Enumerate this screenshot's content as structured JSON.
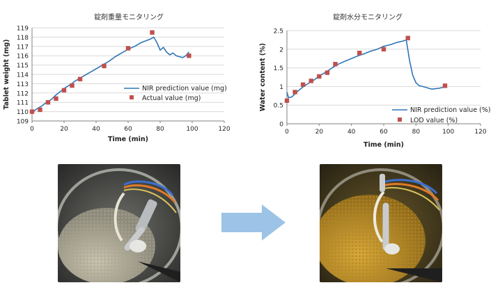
{
  "chart_data": [
    {
      "type": "line",
      "title": "錠剤重量モニタリング",
      "xlabel": "Time (min)",
      "ylabel": "Tablet weight (mg)",
      "xlim": [
        0,
        120
      ],
      "ylim": [
        109,
        119
      ],
      "xticks": [
        "0",
        "20",
        "40",
        "60",
        "80",
        "100",
        "120"
      ],
      "yticks": [
        "109",
        "110",
        "111",
        "112",
        "113",
        "114",
        "115",
        "116",
        "117",
        "118",
        "119"
      ],
      "grid": true,
      "legend": "inside-right",
      "series": [
        {
          "name": "NIR prediction value (mg)",
          "style": "line",
          "color": "#2e75b6",
          "x": [
            0,
            3,
            6,
            9,
            12,
            15,
            18,
            21,
            24,
            27,
            30,
            33,
            36,
            40,
            44,
            48,
            52,
            56,
            60,
            64,
            68,
            71,
            74,
            76,
            78,
            80,
            82,
            84,
            86,
            88,
            90,
            92,
            94,
            96,
            98
          ],
          "y": [
            109.9,
            110.3,
            110.6,
            111.0,
            111.3,
            111.8,
            112.2,
            112.6,
            112.9,
            113.3,
            113.6,
            113.9,
            114.2,
            114.6,
            115.0,
            115.4,
            115.9,
            116.3,
            116.7,
            117.0,
            117.4,
            117.6,
            117.8,
            118.0,
            117.4,
            116.6,
            116.9,
            116.4,
            116.1,
            116.3,
            116.0,
            115.9,
            115.8,
            116.0,
            116.4
          ]
        },
        {
          "name": "Actual value (mg)",
          "style": "marker",
          "color": "#c0504d",
          "x": [
            0,
            5,
            10,
            15,
            20,
            25,
            30,
            45,
            60,
            75,
            98
          ],
          "y": [
            110.0,
            110.2,
            111.0,
            111.4,
            112.3,
            112.8,
            113.5,
            114.9,
            116.8,
            118.5,
            116.0
          ]
        }
      ]
    },
    {
      "type": "line",
      "title": "錠剤水分モニタリング",
      "xlabel": "Time (min)",
      "ylabel": "Water content (%)",
      "xlim": [
        0,
        120
      ],
      "ylim": [
        0,
        2.5
      ],
      "xticks": [
        "0",
        "20",
        "40",
        "60",
        "80",
        "100",
        "120"
      ],
      "yticks": [
        "0",
        "0.5",
        "1",
        "1.5",
        "2",
        "2.5"
      ],
      "grid": true,
      "legend": "bottom-right",
      "series": [
        {
          "name": "NIR prediction value (%)",
          "style": "line",
          "color": "#2e75b6",
          "x": [
            0,
            1,
            3,
            5,
            8,
            11,
            14,
            17,
            20,
            24,
            28,
            32,
            36,
            40,
            44,
            48,
            52,
            56,
            60,
            64,
            68,
            72,
            74,
            76,
            78,
            80,
            82,
            84,
            86,
            88,
            90,
            92,
            94,
            96,
            98
          ],
          "y": [
            0.85,
            0.7,
            0.72,
            0.8,
            0.92,
            1.02,
            1.1,
            1.18,
            1.28,
            1.38,
            1.5,
            1.6,
            1.68,
            1.75,
            1.82,
            1.88,
            1.95,
            2.0,
            2.08,
            2.12,
            2.18,
            2.22,
            2.25,
            1.7,
            1.3,
            1.1,
            1.02,
            1.0,
            0.98,
            0.95,
            0.93,
            0.94,
            0.95,
            0.97,
            0.98
          ]
        },
        {
          "name": "LOD value (%)",
          "style": "marker",
          "color": "#c0504d",
          "x": [
            0,
            5,
            10,
            15,
            20,
            25,
            30,
            45,
            60,
            75,
            98
          ],
          "y": [
            0.62,
            0.85,
            1.05,
            1.15,
            1.27,
            1.37,
            1.6,
            1.9,
            2.0,
            2.3,
            1.02
          ]
        }
      ]
    }
  ],
  "colors": {
    "arrow": "#9dc3e6",
    "grid": "#d9d9d9",
    "axis": "#808080"
  }
}
